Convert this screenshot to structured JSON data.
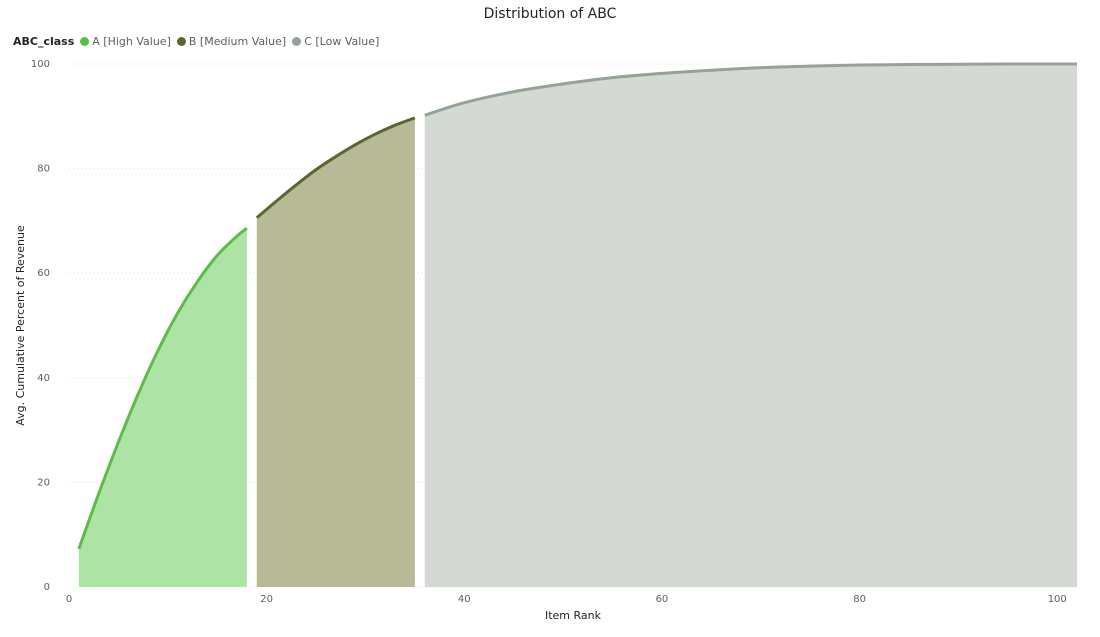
{
  "chart_data": {
    "type": "area",
    "title": "Distribution of ABC",
    "xlabel": "Item Rank",
    "ylabel": "Avg. Cumulative Percent of Revenue",
    "legend_title": "ABC_class",
    "legend_position": "top-left",
    "grid": true,
    "xlim": [
      0,
      102
    ],
    "ylim": [
      0,
      100
    ],
    "xticks": [
      "0",
      "20",
      "40",
      "60",
      "80",
      "100"
    ],
    "yticks": [
      "0",
      "20",
      "40",
      "60",
      "80",
      "100"
    ],
    "series": [
      {
        "name": "A [High Value]",
        "color": "#5bbd47",
        "fill": "#aee3a6",
        "x": [
          1,
          3,
          5,
          7,
          9,
          11,
          13,
          15,
          17,
          18
        ],
        "y": [
          7.3,
          17.8,
          27.7,
          36.9,
          45.2,
          52.4,
          58.4,
          63.4,
          67.1,
          68.6
        ]
      },
      {
        "name": "B [Medium Value]",
        "color": "#5a6630",
        "fill": "#b8b996",
        "x": [
          19,
          21,
          23,
          25,
          27,
          29,
          31,
          33,
          35
        ],
        "y": [
          70.6,
          73.8,
          76.9,
          79.8,
          82.3,
          84.6,
          86.6,
          88.3,
          89.7
        ]
      },
      {
        "name": "C [Low Value]",
        "color": "#94a396",
        "fill": "#d5d9d4",
        "x": [
          36,
          40,
          45,
          50,
          55,
          60,
          65,
          70,
          75,
          80,
          85,
          90,
          95,
          100,
          102
        ],
        "y": [
          90.2,
          92.6,
          94.7,
          96.2,
          97.4,
          98.2,
          98.8,
          99.3,
          99.6,
          99.8,
          99.9,
          99.95,
          100,
          100,
          100
        ]
      }
    ]
  }
}
